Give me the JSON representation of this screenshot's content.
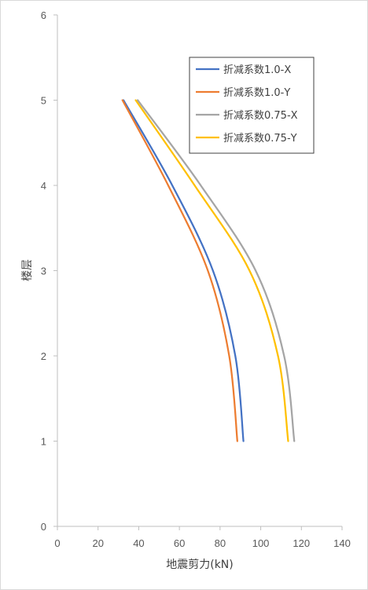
{
  "chart_data": {
    "type": "line",
    "title": "",
    "xlabel": "地震剪力(kN)",
    "ylabel": "楼层",
    "xlim": [
      0,
      140
    ],
    "ylim": [
      0,
      6
    ],
    "xticks": [
      0,
      20,
      40,
      60,
      80,
      100,
      120,
      140
    ],
    "yticks": [
      0,
      1,
      2,
      3,
      4,
      5,
      6
    ],
    "grid": false,
    "legend_position": "top-right",
    "series": [
      {
        "name": "折减系数1.0-X",
        "color": "#4472C4",
        "points": [
          [
            91.5,
            1
          ],
          [
            87.5,
            2
          ],
          [
            76.5,
            3
          ],
          [
            56.5,
            4
          ],
          [
            32.5,
            5
          ]
        ]
      },
      {
        "name": "折减系数1.0-Y",
        "color": "#ED7D31",
        "points": [
          [
            88.5,
            1
          ],
          [
            84.5,
            2
          ],
          [
            74,
            3
          ],
          [
            54.5,
            4
          ],
          [
            32,
            5
          ]
        ]
      },
      {
        "name": "折减系数0.75-X",
        "color": "#A5A5A5",
        "points": [
          [
            116.5,
            1
          ],
          [
            111.5,
            2
          ],
          [
            97.5,
            3
          ],
          [
            70.5,
            4
          ],
          [
            39.5,
            5
          ]
        ]
      },
      {
        "name": "折减系数0.75-Y",
        "color": "#FFC000",
        "points": [
          [
            113.5,
            1
          ],
          [
            108.5,
            2
          ],
          [
            94.5,
            3
          ],
          [
            67.5,
            4
          ],
          [
            38.5,
            5
          ]
        ]
      }
    ]
  }
}
